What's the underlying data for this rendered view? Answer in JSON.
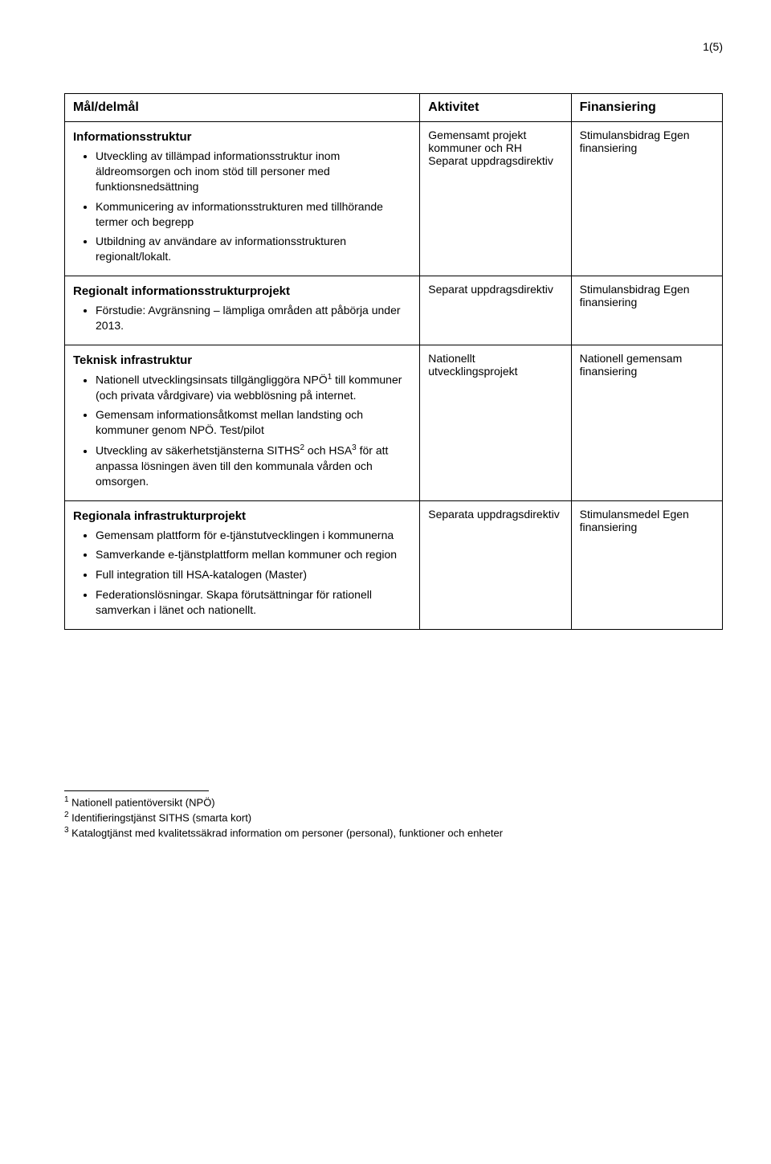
{
  "page_number": "1(5)",
  "headers": {
    "col1": "Mål/delmål",
    "col2": "Aktivitet",
    "col3": "Finansiering"
  },
  "row1": {
    "title": "Informationsstruktur",
    "b1": "Utveckling av tillämpad informationsstruktur inom äldreomsorgen och inom stöd till personer med funktionsnedsättning",
    "b2": "Kommunicering av informationsstrukturen med tillhörande termer och begrepp",
    "b3": "Utbildning av användare av informationsstrukturen regionalt/lokalt.",
    "aktivitet": "Gemensamt projekt kommuner och RH Separat uppdragsdirektiv",
    "fin": "Stimulansbidrag Egen finansiering"
  },
  "row2": {
    "title": "Regionalt informationsstrukturprojekt",
    "b1": "Förstudie: Avgränsning – lämpliga områden att påbörja under 2013.",
    "aktivitet": "Separat uppdragsdirektiv",
    "fin": "Stimulansbidrag Egen finansiering"
  },
  "row3": {
    "title": "Teknisk infrastruktur",
    "b1a": "Nationell utvecklingsinsats tillgängliggöra NPÖ",
    "b1b": " till kommuner (och privata vårdgivare) via webblösning på internet.",
    "b2": "Gemensam informationsåtkomst mellan landsting och kommuner genom NPÖ. Test/pilot",
    "b3a": "Utveckling av säkerhetstjänsterna SITHS",
    "b3b": " och HSA",
    "b3c": " för att anpassa lösningen även till den kommunala vården och omsorgen.",
    "aktivitet": "Nationellt utvecklingsprojekt",
    "fin": "Nationell gemensam finansiering"
  },
  "row4": {
    "title": "Regionala infrastrukturprojekt",
    "b1": "Gemensam plattform för e-tjänstutvecklingen i kommunerna",
    "b2": "Samverkande e-tjänstplattform mellan kommuner och region",
    "b3": "Full integration till HSA-katalogen (Master)",
    "b4": "Federationslösningar. Skapa förutsättningar för rationell samverkan i länet och nationellt.",
    "aktivitet": "Separata uppdragsdirektiv",
    "fin": "Stimulansmedel Egen finansiering"
  },
  "footnotes": {
    "f1": " Nationell patientöversikt (NPÖ)",
    "f2": " Identifieringstjänst SITHS (smarta kort)",
    "f3": " Katalogtjänst med kvalitetssäkrad information om personer (personal), funktioner och enheter"
  }
}
